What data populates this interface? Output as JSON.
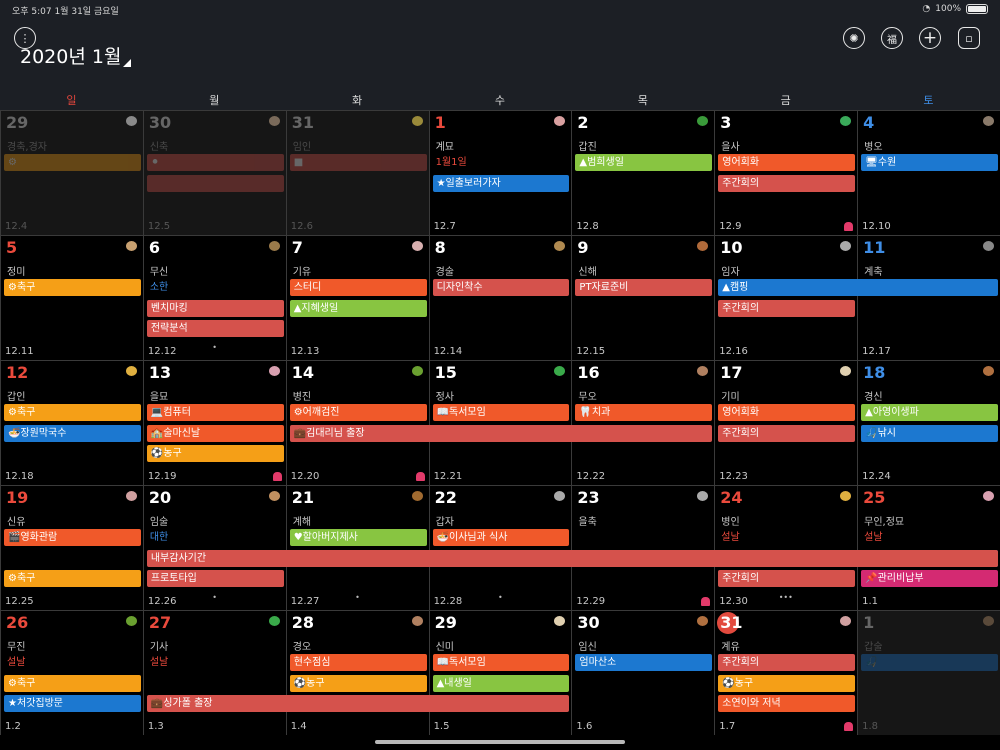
{
  "status_bar": {
    "time_date": "오후 5:07   1월 31일 금요일",
    "battery": "100%"
  },
  "header": {
    "title": "2020년 1월",
    "buttons": [
      {
        "icon": "more-icon",
        "glyph": "⋮"
      },
      {
        "icon": "settings-gear-icon",
        "glyph": "✺"
      },
      {
        "icon": "fortune-icon",
        "glyph": "福"
      },
      {
        "icon": "add-icon",
        "glyph": "+"
      },
      {
        "icon": "view-toggle-icon",
        "glyph": "▫"
      }
    ]
  },
  "weekdays": [
    "일",
    "월",
    "화",
    "수",
    "목",
    "금",
    "토"
  ],
  "colors": {
    "red": "#d5524c",
    "orange": "#f0592a",
    "yellow": "#f59f17",
    "green": "#88c541",
    "blue": "#1c78d0",
    "pink": "#d42a72"
  },
  "weeks": [
    [
      {
        "d": "29",
        "gz": "경축,경자",
        "lunar": "12.4",
        "other": true,
        "animal": "#8a8a8a",
        "events": [
          {
            "t": "⚙",
            "c": "yellow"
          }
        ]
      },
      {
        "d": "30",
        "gz": "신축",
        "lunar": "12.5",
        "other": true,
        "animal": "#7a6a5a",
        "events": [
          {
            "t": "⚫",
            "c": "red"
          },
          {
            "t": "",
            "c": "red"
          }
        ]
      },
      {
        "d": "31",
        "gz": "임인",
        "lunar": "12.6",
        "other": true,
        "animal": "#9a8a3a",
        "events": [
          {
            "t": "■",
            "c": "red"
          }
        ]
      },
      {
        "d": "1",
        "gz": "계묘",
        "lunar": "12.7",
        "animal": "#d9a0a0",
        "holiday": "1월1일",
        "events": [
          {
            "t": "★일출보러가자",
            "c": "blue",
            "slot": 1
          }
        ]
      },
      {
        "d": "2",
        "gz": "갑진",
        "lunar": "12.8",
        "animal": "#3a9a3a",
        "events": [
          {
            "t": "▲범희생일",
            "c": "green"
          }
        ]
      },
      {
        "d": "3",
        "gz": "을사",
        "lunar": "12.9",
        "animal": "#3aaa5a",
        "pin": "#e23a6a",
        "events": [
          {
            "t": "영어회화",
            "c": "orange"
          },
          {
            "t": "주간회의",
            "c": "red"
          }
        ]
      },
      {
        "d": "4",
        "gz": "병오",
        "lunar": "12.10",
        "animal": "#8a7a6a",
        "events": [
          {
            "t": "🖥수원",
            "c": "blue"
          }
        ]
      }
    ],
    [
      {
        "d": "5",
        "gz": "정미",
        "lunar": "12.11",
        "animal": "#c8a070",
        "events": [
          {
            "t": "⚙축구",
            "c": "yellow"
          }
        ]
      },
      {
        "d": "6",
        "gz": "무신",
        "lunar": "12.12",
        "animal": "#9a7a4a",
        "term": "소한",
        "dot": true,
        "events": [
          {
            "t": "벤치마킹",
            "c": "red",
            "slot": 1
          },
          {
            "t": "전략분석",
            "c": "red",
            "slot": 2
          }
        ]
      },
      {
        "d": "7",
        "gz": "기유",
        "lunar": "12.13",
        "animal": "#d8b0b0",
        "events": [
          {
            "t": "스터디",
            "c": "orange"
          },
          {
            "t": "▲지혜생일",
            "c": "green"
          }
        ]
      },
      {
        "d": "8",
        "gz": "경술",
        "lunar": "12.14",
        "animal": "#b08a50",
        "events": [
          {
            "t": "디자인착수",
            "c": "red"
          }
        ]
      },
      {
        "d": "9",
        "gz": "신해",
        "lunar": "12.15",
        "animal": "#b06a3a",
        "events": [
          {
            "t": "PT자료준비",
            "c": "red"
          }
        ]
      },
      {
        "d": "10",
        "gz": "임자",
        "lunar": "12.16",
        "animal": "#aaaaaa",
        "events": [
          {
            "t": "▲캠핑",
            "c": "blue",
            "span": 2
          },
          {
            "t": "주간회의",
            "c": "red"
          }
        ]
      },
      {
        "d": "11",
        "gz": "계축",
        "lunar": "12.17",
        "animal": "#888888",
        "events": []
      }
    ],
    [
      {
        "d": "12",
        "gz": "갑인",
        "lunar": "12.18",
        "animal": "#e0b040",
        "events": [
          {
            "t": "⚙축구",
            "c": "yellow"
          },
          {
            "t": "🍜장원막국수",
            "c": "blue"
          }
        ]
      },
      {
        "d": "13",
        "gz": "을묘",
        "lunar": "12.19",
        "animal": "#d8a0b0",
        "pin": "#e23a6a",
        "events": [
          {
            "t": "💻컴퓨터",
            "c": "orange"
          },
          {
            "t": "🏫술마신날",
            "c": "orange"
          },
          {
            "t": "⚽농구",
            "c": "yellow"
          }
        ]
      },
      {
        "d": "14",
        "gz": "병진",
        "lunar": "12.20",
        "animal": "#6aa030",
        "pin": "#e23a6a",
        "events": [
          {
            "t": "⚙어깨검진",
            "c": "orange"
          },
          {
            "t": "💼김대리님 출장",
            "c": "red",
            "span": 3
          }
        ]
      },
      {
        "d": "15",
        "gz": "정사",
        "lunar": "12.21",
        "animal": "#3aaa4a",
        "events": [
          {
            "t": "📖독서모임",
            "c": "orange"
          }
        ]
      },
      {
        "d": "16",
        "gz": "무오",
        "lunar": "12.22",
        "animal": "#b08060",
        "events": [
          {
            "t": "🦷치과",
            "c": "orange"
          }
        ]
      },
      {
        "d": "17",
        "gz": "기미",
        "lunar": "12.23",
        "animal": "#e0d0b0",
        "events": [
          {
            "t": "영어회화",
            "c": "orange"
          },
          {
            "t": "주간회의",
            "c": "red"
          }
        ]
      },
      {
        "d": "18",
        "gz": "경신",
        "lunar": "12.24",
        "animal": "#b07040",
        "events": [
          {
            "t": "▲아영이생파",
            "c": "green"
          },
          {
            "t": "🎣낚시",
            "c": "blue"
          }
        ]
      }
    ],
    [
      {
        "d": "19",
        "gz": "신유",
        "lunar": "12.25",
        "animal": "#d0a0a0",
        "events": [
          {
            "t": "🎬영화관람",
            "c": "orange"
          },
          {
            "t": "⚙축구",
            "c": "yellow",
            "slot": 2
          }
        ]
      },
      {
        "d": "20",
        "gz": "임술",
        "lunar": "12.26",
        "animal": "#c09060",
        "term": "대한",
        "dot": true,
        "events": [
          {
            "t": "내부감사기간",
            "c": "red",
            "span": 6,
            "slot": 1
          },
          {
            "t": "프로토타입",
            "c": "red",
            "slot": 2
          }
        ]
      },
      {
        "d": "21",
        "gz": "계해",
        "lunar": "12.27",
        "animal": "#a06a30",
        "dot": true,
        "events": [
          {
            "t": "♥할아버지제사",
            "c": "green"
          }
        ]
      },
      {
        "d": "22",
        "gz": "갑자",
        "lunar": "12.28",
        "animal": "#aaaaaa",
        "dot": true,
        "events": [
          {
            "t": "🍜이사님과 식사",
            "c": "orange"
          }
        ]
      },
      {
        "d": "23",
        "gz": "을축",
        "lunar": "12.29",
        "animal": "#aaaaaa",
        "pin": "#e23a6a",
        "events": []
      },
      {
        "d": "24",
        "gz": "병인",
        "lunar": "12.30",
        "animal": "#e0b040",
        "holiday": "설날",
        "dots3": true,
        "events": [
          {
            "t": "주간회의",
            "c": "red",
            "slot": 2
          }
        ]
      },
      {
        "d": "25",
        "gz": "무인,정묘",
        "lunar": "1.1",
        "animal": "#d8a0b0",
        "holiday": "설날",
        "events": [
          {
            "t": "🖥수원방문",
            "c": "blue",
            "slot": 1
          },
          {
            "t": "📌관리비납부",
            "c": "pink",
            "slot": 2
          }
        ]
      }
    ],
    [
      {
        "d": "26",
        "gz": "무진",
        "lunar": "1.2",
        "animal": "#6aa030",
        "holiday": "설날",
        "events": [
          {
            "t": "⚙축구",
            "c": "yellow"
          },
          {
            "t": "★처갓집방문",
            "c": "blue"
          }
        ]
      },
      {
        "d": "27",
        "gz": "기사",
        "lunar": "1.3",
        "animal": "#3aaa4a",
        "holiday": "설날",
        "events": [
          {
            "t": "💼싱가폴 출장",
            "c": "red",
            "span": 3,
            "slot": 2
          }
        ]
      },
      {
        "d": "28",
        "gz": "경오",
        "lunar": "1.4",
        "animal": "#b08060",
        "events": [
          {
            "t": "현수점심",
            "c": "orange"
          },
          {
            "t": "⚽농구",
            "c": "yellow"
          }
        ]
      },
      {
        "d": "29",
        "gz": "신미",
        "lunar": "1.5",
        "animal": "#e0d0b0",
        "events": [
          {
            "t": "📖독서모임",
            "c": "orange"
          },
          {
            "t": "▲내생일",
            "c": "green"
          }
        ]
      },
      {
        "d": "30",
        "gz": "임신",
        "lunar": "1.6",
        "animal": "#b07040",
        "events": [
          {
            "t": "엄마산소",
            "c": "blue"
          }
        ]
      },
      {
        "d": "31",
        "gz": "계유",
        "lunar": "1.7",
        "animal": "#d0a0a0",
        "today": true,
        "pin": "#e23a6a",
        "events": [
          {
            "t": "주간회의",
            "c": "red"
          },
          {
            "t": "⚽농구",
            "c": "yellow"
          },
          {
            "t": "소연이와 저녁",
            "c": "orange"
          }
        ]
      },
      {
        "d": "1",
        "gz": "갑술",
        "lunar": "1.8",
        "other": true,
        "animal": "#5a4a3a",
        "events": [
          {
            "t": "🎣",
            "c": "blue"
          }
        ]
      }
    ]
  ]
}
